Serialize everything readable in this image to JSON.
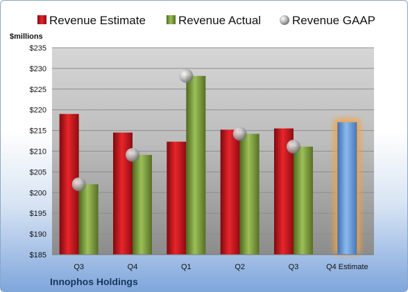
{
  "chart_data": {
    "type": "bar",
    "unit_label": "$millions",
    "company": "Innophos Holdings",
    "categories": [
      "Q3",
      "Q4",
      "Q1",
      "Q2",
      "Q3",
      "Q4 Estimate"
    ],
    "series": [
      {
        "name": "Revenue Estimate",
        "kind": "bar",
        "color": "#c0141a",
        "values": [
          219,
          214.5,
          212.3,
          215.2,
          215.5,
          null
        ]
      },
      {
        "name": "Revenue Actual",
        "kind": "bar",
        "color": "#7a9a3a",
        "values": [
          202,
          209.1,
          228.2,
          214.2,
          211.1,
          null
        ]
      },
      {
        "name": "Revenue GAAP",
        "kind": "marker",
        "color": "#9a9a9a",
        "values": [
          202,
          209.1,
          228.2,
          214.2,
          211.1,
          null
        ]
      },
      {
        "name": "Q4 Estimate",
        "kind": "bar",
        "color": "#6a9fd8",
        "legend": false,
        "values": [
          null,
          null,
          null,
          null,
          null,
          217
        ]
      }
    ],
    "ylim": [
      185,
      235
    ],
    "yticks": [
      "$185",
      "$190",
      "$195",
      "$200",
      "$205",
      "$210",
      "$215",
      "$220",
      "$225",
      "$230",
      "$235"
    ],
    "grid": true,
    "legend_position": "top"
  }
}
